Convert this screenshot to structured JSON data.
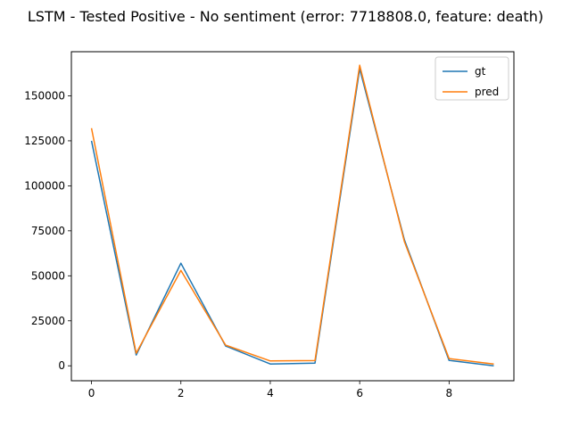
{
  "chart_data": {
    "type": "line",
    "title": "LSTM - Tested Positive - No sentiment (error: 7718808.0, feature: death)",
    "xlabel": "",
    "ylabel": "",
    "x": [
      0,
      1,
      2,
      3,
      4,
      5,
      6,
      7,
      8,
      9
    ],
    "xlim": [
      -0.45,
      9.45
    ],
    "ylim": [
      -8300,
      174500
    ],
    "xticks": [
      0,
      2,
      4,
      6,
      8
    ],
    "yticks": [
      0,
      25000,
      50000,
      75000,
      100000,
      125000,
      150000
    ],
    "grid": false,
    "legend_position": "top-right",
    "series": [
      {
        "name": "gt",
        "color": "#1f77b4",
        "values": [
          125000,
          6000,
          57000,
          11000,
          1000,
          1500,
          165000,
          70000,
          3000,
          0
        ]
      },
      {
        "name": "pred",
        "color": "#ff7f0e",
        "values": [
          132000,
          7000,
          53000,
          11500,
          2700,
          2900,
          167000,
          69000,
          4000,
          1000
        ]
      }
    ]
  }
}
